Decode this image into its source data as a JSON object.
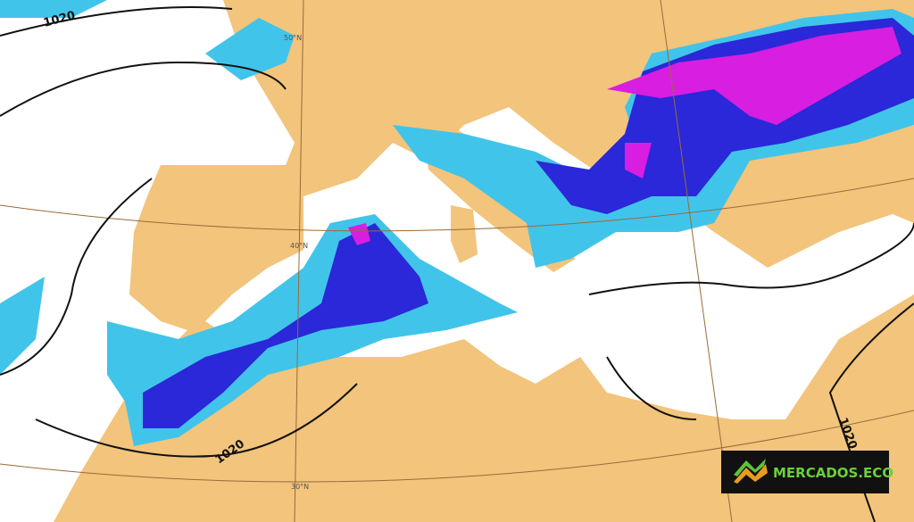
{
  "map": {
    "isobar_labels": [
      "1020",
      "1020",
      "1020"
    ],
    "latitude_labels": [
      "50°N",
      "40°N",
      "30°N"
    ],
    "logo": {
      "text": "MERCADOS.ECO"
    }
  }
}
